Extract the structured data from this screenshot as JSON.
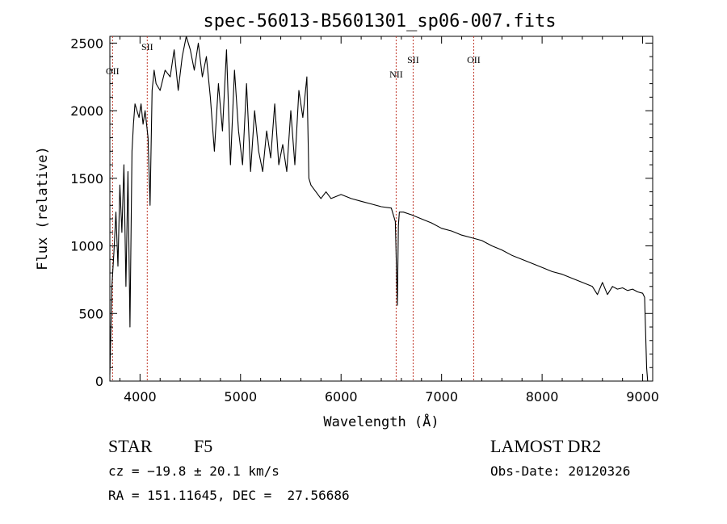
{
  "chart_data": {
    "type": "line",
    "title": "spec-56013-B5601301_sp06-007.fits",
    "xlabel": "Wavelength (Å)",
    "ylabel": "Flux (relative)",
    "xlim": [
      3700,
      9100
    ],
    "ylim": [
      0,
      2550
    ],
    "xticks": [
      4000,
      5000,
      6000,
      7000,
      8000,
      9000
    ],
    "yticks": [
      0,
      500,
      1000,
      1500,
      2000,
      2500
    ],
    "grid": false,
    "series": [
      {
        "x": [
          3700,
          3720,
          3740,
          3760,
          3780,
          3800,
          3820,
          3840,
          3860,
          3880,
          3900,
          3920,
          3935,
          3950,
          3970,
          3990,
          4010,
          4030,
          4050,
          4080,
          4100,
          4120,
          4140,
          4160,
          4200,
          4250,
          4300,
          4340,
          4380,
          4420,
          4460,
          4500,
          4540,
          4580,
          4620,
          4660,
          4700,
          4740,
          4780,
          4820,
          4860,
          4900,
          4940,
          4980,
          5020,
          5060,
          5100,
          5140,
          5180,
          5220,
          5260,
          5300,
          5340,
          5380,
          5420,
          5460,
          5500,
          5540,
          5580,
          5620,
          5660,
          5680,
          5700,
          5750,
          5800,
          5850,
          5900,
          6000,
          6100,
          6200,
          6300,
          6400,
          6500,
          6540,
          6560,
          6570,
          6580,
          6620,
          6700,
          6800,
          6900,
          7000,
          7100,
          7200,
          7300,
          7400,
          7500,
          7600,
          7700,
          7800,
          7900,
          8000,
          8100,
          8200,
          8300,
          8400,
          8500,
          8550,
          8600,
          8650,
          8700,
          8750,
          8800,
          8850,
          8900,
          8950,
          9000,
          9020,
          9040,
          9050
        ],
        "y": [
          50,
          700,
          950,
          1250,
          850,
          1450,
          1100,
          1600,
          700,
          1550,
          400,
          1700,
          1900,
          2050,
          2000,
          1950,
          2050,
          1900,
          2000,
          1800,
          1300,
          2150,
          2300,
          2200,
          2150,
          2300,
          2250,
          2450,
          2150,
          2400,
          2550,
          2450,
          2300,
          2500,
          2250,
          2400,
          2100,
          1700,
          2200,
          1850,
          2450,
          1600,
          2300,
          1850,
          1600,
          2200,
          1550,
          2000,
          1700,
          1550,
          1850,
          1650,
          2050,
          1600,
          1750,
          1550,
          2000,
          1600,
          2150,
          1950,
          2250,
          1500,
          1450,
          1400,
          1350,
          1400,
          1350,
          1380,
          1350,
          1330,
          1310,
          1290,
          1280,
          1180,
          560,
          1150,
          1250,
          1250,
          1230,
          1200,
          1170,
          1130,
          1110,
          1080,
          1060,
          1040,
          1000,
          970,
          930,
          900,
          870,
          840,
          810,
          790,
          760,
          730,
          700,
          640,
          730,
          640,
          700,
          680,
          690,
          670,
          680,
          660,
          650,
          620,
          100,
          0
        ]
      }
    ],
    "lines": [
      {
        "name": "OII",
        "x": 3727
      },
      {
        "name": "SII",
        "x": 4072
      },
      {
        "name": "NII",
        "x": 6548
      },
      {
        "name": "SII",
        "x": 6717
      },
      {
        "name": "OII",
        "x": 7320
      }
    ]
  },
  "info": {
    "class": "STAR",
    "subclass": "F5",
    "cz": "cz = −19.8 ± 20.1 km/s",
    "coords": "RA = 151.11645, DEC =  27.56686",
    "survey": "LAMOST DR2",
    "obs_date": "Obs-Date: 20120326"
  },
  "colors": {
    "axis": "#000000",
    "spectrum": "#000000",
    "marker": "#c0392b"
  }
}
